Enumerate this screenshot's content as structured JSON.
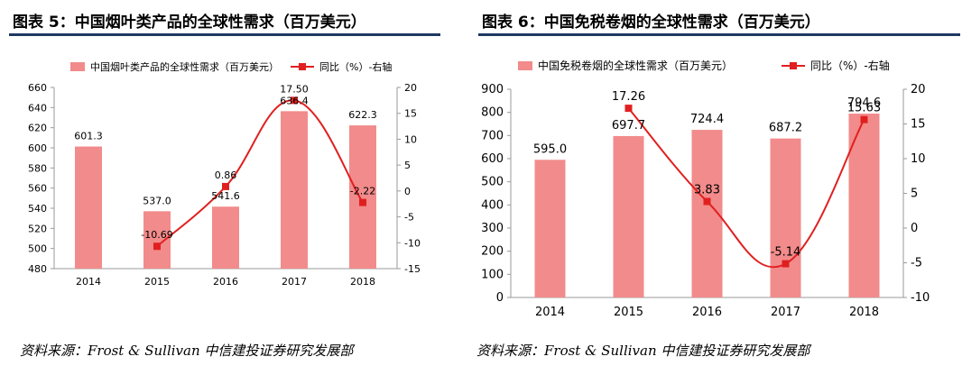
{
  "chart_data": [
    {
      "type": "bar",
      "title": "图表 5：中国烟叶类产品的全球性需求（百万美元）",
      "categories": [
        "2014",
        "2015",
        "2016",
        "2017",
        "2018"
      ],
      "series": [
        {
          "name": "中国烟叶类产品的全球性需求（百万美元）",
          "type": "bar",
          "axis": "left",
          "values": [
            601.3,
            537.0,
            541.6,
            636.4,
            622.3
          ],
          "labels": [
            "601.3",
            "537.0",
            "541.6",
            "636.4",
            "622.3"
          ]
        },
        {
          "name": "同比（%）-右轴",
          "type": "line",
          "axis": "right",
          "values": [
            null,
            -10.69,
            0.86,
            17.5,
            -2.22
          ],
          "labels": [
            "",
            "-10.69",
            "0.86",
            "17.50",
            "-2.22"
          ]
        }
      ],
      "y_left": {
        "min": 480,
        "max": 660,
        "step": 20
      },
      "y_right": {
        "min": -15,
        "max": 20,
        "step": 5
      },
      "legend": "top",
      "source": "资料来源：Frost & Sullivan  中信建投证券研究发展部"
    },
    {
      "type": "bar",
      "title": "图表 6：中国免税卷烟的全球性需求（百万美元）",
      "categories": [
        "2014",
        "2015",
        "2016",
        "2017",
        "2018"
      ],
      "series": [
        {
          "name": "中国免税卷烟的全球性需求（百万美元）",
          "type": "bar",
          "axis": "left",
          "values": [
            595.0,
            697.7,
            724.4,
            687.2,
            794.6
          ],
          "labels": [
            "595.0",
            "697.7",
            "724.4",
            "687.2",
            "794.6"
          ]
        },
        {
          "name": "同比（%）-右轴",
          "type": "line",
          "axis": "right",
          "values": [
            null,
            17.26,
            3.83,
            -5.14,
            15.63
          ],
          "labels": [
            "",
            "17.26",
            "3.83",
            "-5.14",
            "15.63"
          ]
        }
      ],
      "y_left": {
        "min": 0,
        "max": 900,
        "step": 100
      },
      "y_right": {
        "min": -10,
        "max": 20,
        "step": 5
      },
      "legend": "top",
      "source": "资料来源：Frost & Sullivan  中信建投证券研究发展部"
    }
  ],
  "colors": {
    "bar": "#f28b8b",
    "line": "#e02020",
    "rule": "#1f3864",
    "axis": "#9a9a9a"
  }
}
